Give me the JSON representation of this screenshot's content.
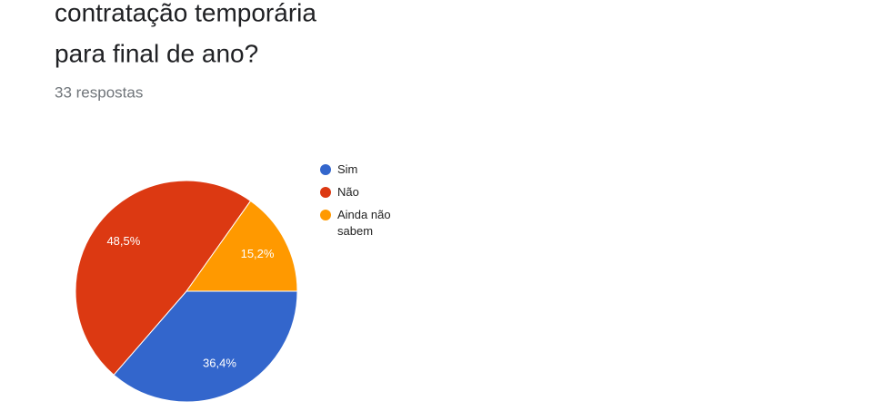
{
  "header": {
    "title_lines": [
      "contratação temporária",
      "para final de ano?"
    ],
    "subtitle": "33 respostas"
  },
  "chart_data": {
    "type": "pie",
    "categories": [
      "Sim",
      "Não",
      "Ainda não sabem"
    ],
    "values": [
      36.4,
      48.5,
      15.2
    ],
    "value_labels": [
      "36,4%",
      "48,5%",
      "15,2%"
    ],
    "colors": [
      "#3366cc",
      "#dc3912",
      "#ff9900"
    ],
    "legend": "right"
  }
}
